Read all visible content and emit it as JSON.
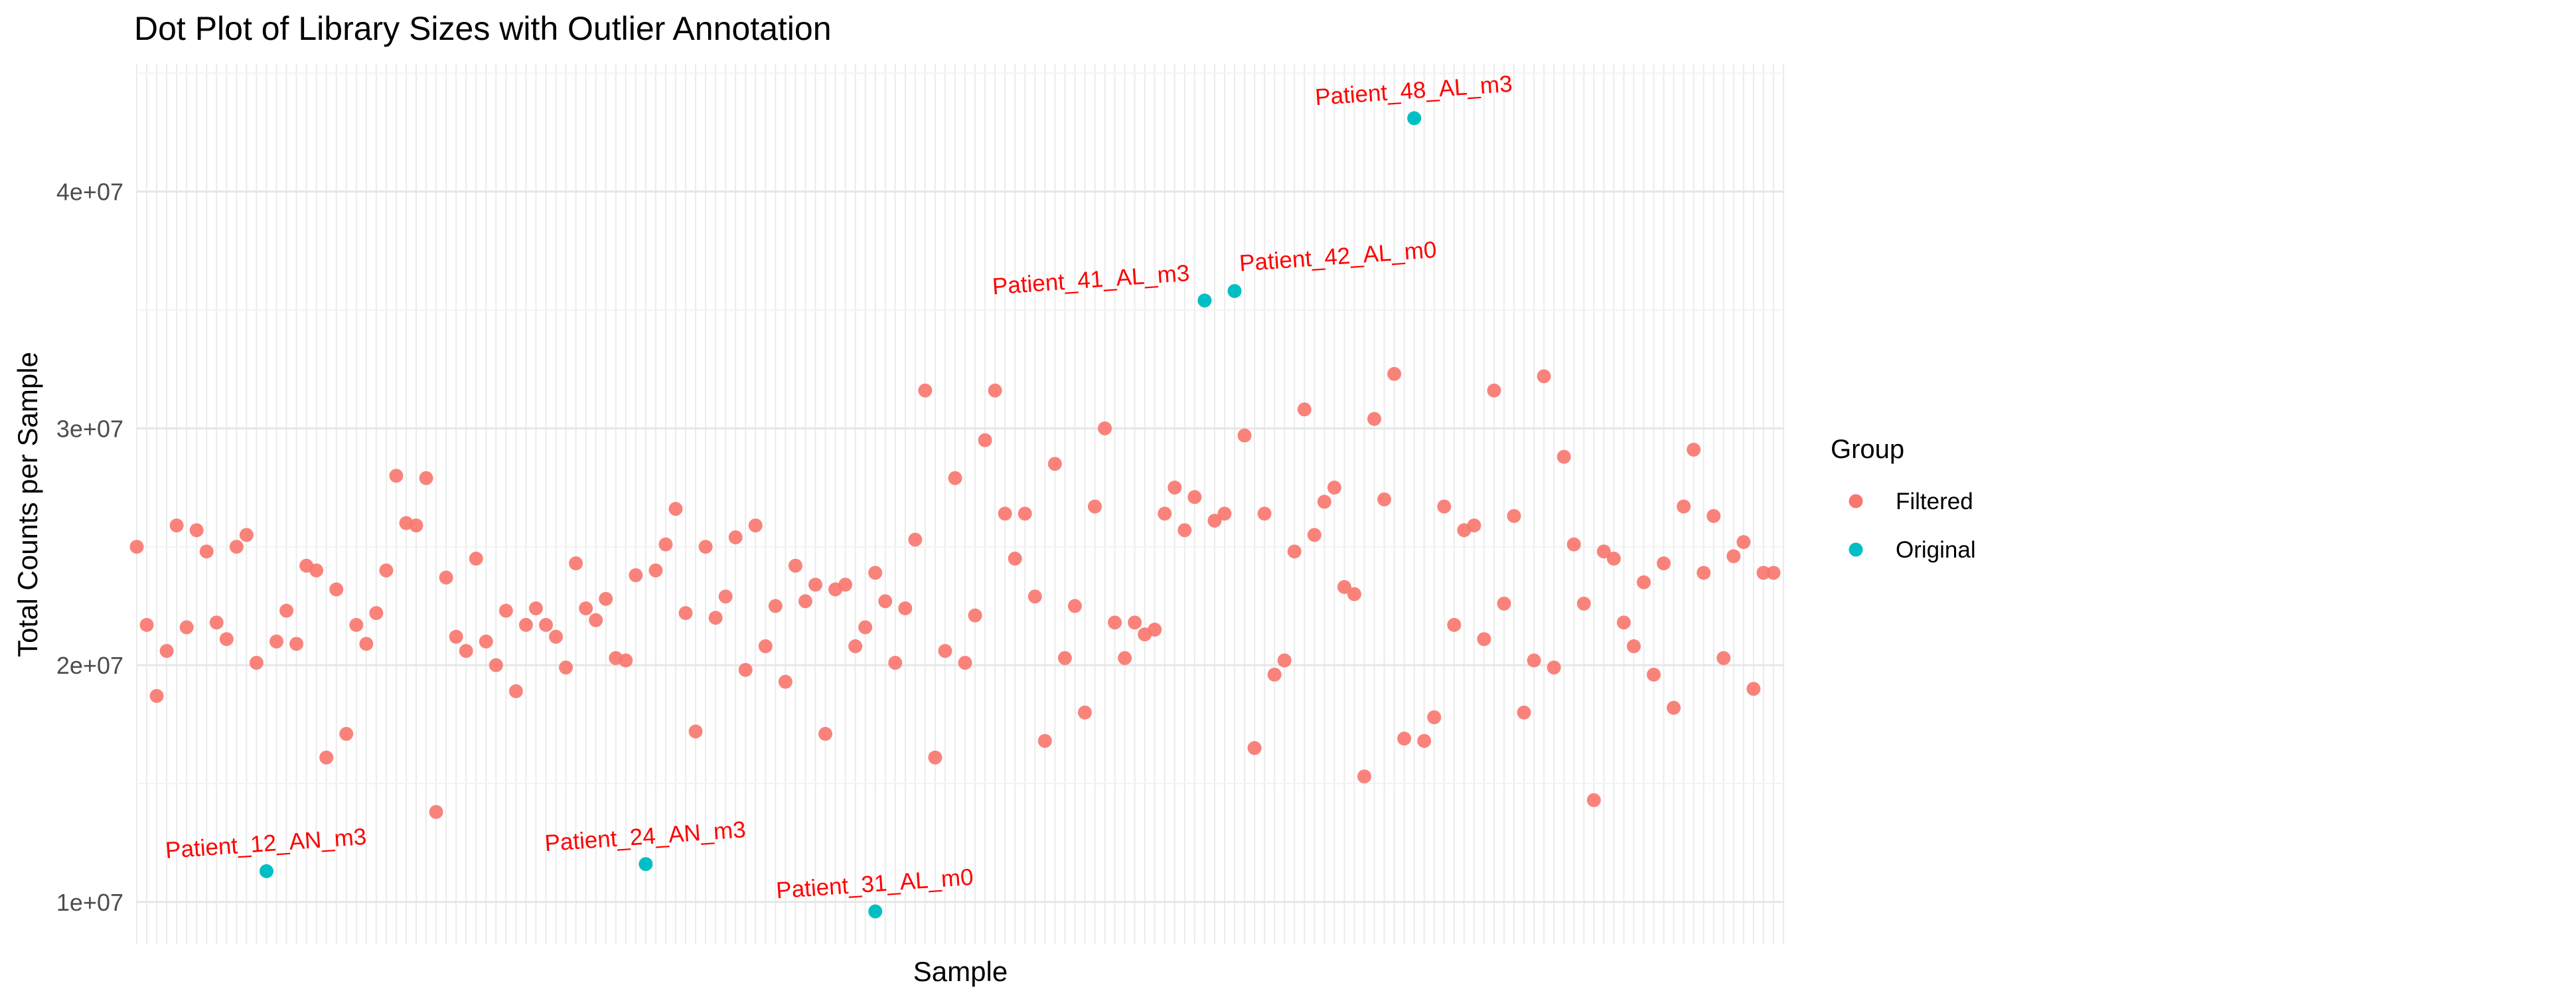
{
  "chart_data": {
    "type": "scatter",
    "title": "Dot Plot of Library Sizes with Outlier Annotation",
    "xlabel": "Sample",
    "ylabel": "Total Counts per Sample",
    "y_ticks": [
      10000000,
      20000000,
      30000000,
      40000000
    ],
    "y_tick_labels": [
      "1e+07",
      "2e+07",
      "3e+07",
      "4e+07"
    ],
    "ylim": [
      8200000,
      45400000
    ],
    "n_samples": 166,
    "grid": true,
    "legend_position": "right",
    "legend": {
      "title": "Group",
      "entries": [
        {
          "label": "Filtered",
          "color": "#F8766D"
        },
        {
          "label": "Original",
          "color": "#00BFC4"
        }
      ]
    },
    "series": [
      {
        "name": "Filtered",
        "color": "#F8766D",
        "points": [
          [
            1,
            25000000
          ],
          [
            2,
            21700000
          ],
          [
            3,
            18700000
          ],
          [
            4,
            20600000
          ],
          [
            5,
            25900000
          ],
          [
            6,
            21600000
          ],
          [
            7,
            25700000
          ],
          [
            8,
            24800000
          ],
          [
            9,
            21800000
          ],
          [
            10,
            21100000
          ],
          [
            11,
            25000000
          ],
          [
            12,
            25500000
          ],
          [
            13,
            20100000
          ],
          [
            15,
            21000000
          ],
          [
            16,
            22300000
          ],
          [
            17,
            20900000
          ],
          [
            18,
            24200000
          ],
          [
            19,
            24000000
          ],
          [
            20,
            16100000
          ],
          [
            21,
            23200000
          ],
          [
            22,
            17100000
          ],
          [
            23,
            21700000
          ],
          [
            24,
            20900000
          ],
          [
            25,
            22200000
          ],
          [
            26,
            24000000
          ],
          [
            27,
            28000000
          ],
          [
            28,
            26000000
          ],
          [
            29,
            25900000
          ],
          [
            30,
            27900000
          ],
          [
            31,
            13800000
          ],
          [
            32,
            23700000
          ],
          [
            33,
            21200000
          ],
          [
            34,
            20600000
          ],
          [
            35,
            24500000
          ],
          [
            36,
            21000000
          ],
          [
            37,
            20000000
          ],
          [
            38,
            22300000
          ],
          [
            39,
            18900000
          ],
          [
            40,
            21700000
          ],
          [
            41,
            22400000
          ],
          [
            42,
            21700000
          ],
          [
            43,
            21200000
          ],
          [
            44,
            19900000
          ],
          [
            45,
            24300000
          ],
          [
            46,
            22400000
          ],
          [
            47,
            21900000
          ],
          [
            48,
            22800000
          ],
          [
            49,
            20300000
          ],
          [
            50,
            20200000
          ],
          [
            51,
            23800000
          ],
          [
            53,
            24000000
          ],
          [
            54,
            25100000
          ],
          [
            55,
            26600000
          ],
          [
            56,
            22200000
          ],
          [
            57,
            17200000
          ],
          [
            58,
            25000000
          ],
          [
            59,
            22000000
          ],
          [
            60,
            22900000
          ],
          [
            61,
            25400000
          ],
          [
            62,
            19800000
          ],
          [
            63,
            25900000
          ],
          [
            64,
            20800000
          ],
          [
            65,
            22500000
          ],
          [
            66,
            19300000
          ],
          [
            67,
            24200000
          ],
          [
            68,
            22700000
          ],
          [
            69,
            23400000
          ],
          [
            70,
            17100000
          ],
          [
            71,
            23200000
          ],
          [
            72,
            23400000
          ],
          [
            73,
            20800000
          ],
          [
            74,
            21600000
          ],
          [
            75,
            23900000
          ],
          [
            76,
            22700000
          ],
          [
            77,
            20100000
          ],
          [
            78,
            22400000
          ],
          [
            79,
            25300000
          ],
          [
            80,
            31600000
          ],
          [
            81,
            16100000
          ],
          [
            82,
            20600000
          ],
          [
            83,
            27900000
          ],
          [
            84,
            20100000
          ],
          [
            85,
            22100000
          ],
          [
            86,
            29500000
          ],
          [
            87,
            31600000
          ],
          [
            88,
            26400000
          ],
          [
            89,
            24500000
          ],
          [
            90,
            26400000
          ],
          [
            91,
            22900000
          ],
          [
            92,
            16800000
          ],
          [
            93,
            28500000
          ],
          [
            94,
            20300000
          ],
          [
            95,
            22500000
          ],
          [
            96,
            18000000
          ],
          [
            97,
            26700000
          ],
          [
            98,
            30000000
          ],
          [
            99,
            21800000
          ],
          [
            100,
            20300000
          ],
          [
            101,
            21800000
          ],
          [
            102,
            21300000
          ],
          [
            103,
            21500000
          ],
          [
            104,
            26400000
          ],
          [
            105,
            27500000
          ],
          [
            106,
            25700000
          ],
          [
            107,
            27100000
          ],
          [
            109,
            26100000
          ],
          [
            110,
            26400000
          ],
          [
            112,
            29700000
          ],
          [
            113,
            16500000
          ],
          [
            114,
            26400000
          ],
          [
            115,
            19600000
          ],
          [
            116,
            20200000
          ],
          [
            117,
            24800000
          ],
          [
            118,
            30800000
          ],
          [
            119,
            25500000
          ],
          [
            120,
            26900000
          ],
          [
            121,
            27500000
          ],
          [
            122,
            23300000
          ],
          [
            123,
            23000000
          ],
          [
            124,
            15300000
          ],
          [
            125,
            30400000
          ],
          [
            126,
            27000000
          ],
          [
            127,
            32300000
          ],
          [
            128,
            16900000
          ],
          [
            130,
            16800000
          ],
          [
            131,
            17800000
          ],
          [
            132,
            26700000
          ],
          [
            133,
            21700000
          ],
          [
            134,
            25700000
          ],
          [
            135,
            25900000
          ],
          [
            136,
            21100000
          ],
          [
            137,
            31600000
          ],
          [
            138,
            22600000
          ],
          [
            139,
            26300000
          ],
          [
            140,
            18000000
          ],
          [
            141,
            20200000
          ],
          [
            142,
            32200000
          ],
          [
            143,
            19900000
          ],
          [
            144,
            28800000
          ],
          [
            145,
            25100000
          ],
          [
            146,
            22600000
          ],
          [
            147,
            14300000
          ],
          [
            148,
            24800000
          ],
          [
            149,
            24500000
          ],
          [
            150,
            21800000
          ],
          [
            151,
            20800000
          ],
          [
            152,
            23500000
          ],
          [
            153,
            19600000
          ],
          [
            154,
            24300000
          ],
          [
            155,
            18200000
          ],
          [
            156,
            26700000
          ],
          [
            157,
            29100000
          ],
          [
            158,
            23900000
          ],
          [
            159,
            26300000
          ],
          [
            160,
            20300000
          ],
          [
            161,
            24600000
          ],
          [
            162,
            25200000
          ],
          [
            163,
            19000000
          ],
          [
            164,
            23900000
          ],
          [
            165,
            23900000
          ]
        ]
      },
      {
        "name": "Original",
        "color": "#00BFC4",
        "points": [
          [
            14,
            11300000
          ],
          [
            52,
            11600000
          ],
          [
            75,
            9600000
          ],
          [
            108,
            35400000
          ],
          [
            111,
            35800000
          ],
          [
            129,
            43100000
          ]
        ]
      }
    ],
    "annotations": [
      {
        "label": "Patient_12_AN_m3",
        "x": 14,
        "y": 11300000,
        "color": "#FF0000"
      },
      {
        "label": "Patient_24_AN_m3",
        "x": 52,
        "y": 11600000,
        "color": "#FF0000"
      },
      {
        "label": "Patient_31_AL_m0",
        "x": 75,
        "y": 9600000,
        "color": "#FF0000"
      },
      {
        "label": "Patient_41_AL_m3",
        "x": 108,
        "y": 35400000,
        "color": "#FF0000"
      },
      {
        "label": "Patient_42_AL_m0",
        "x": 111,
        "y": 35800000,
        "color": "#FF0000"
      },
      {
        "label": "Patient_48_AL_m3",
        "x": 129,
        "y": 43100000,
        "color": "#FF0000"
      }
    ]
  }
}
